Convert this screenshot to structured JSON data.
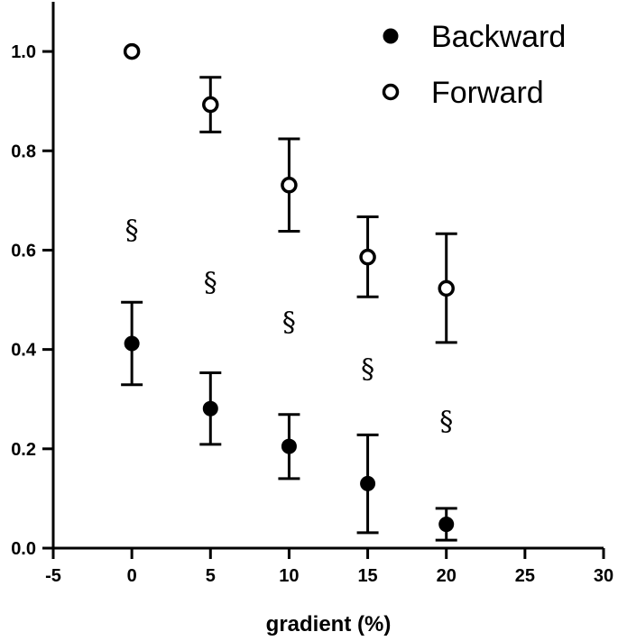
{
  "chart_data": {
    "type": "scatter",
    "title": "",
    "xlabel": "gradient (%)",
    "ylabel": "",
    "xlim": [
      -5,
      30
    ],
    "ylim": [
      0,
      1.1
    ],
    "x_ticks": [
      -5,
      0,
      5,
      10,
      15,
      20,
      25,
      30
    ],
    "x_tick_labels": [
      "-5",
      "0",
      "5",
      "10",
      "15",
      "20",
      "25",
      "30"
    ],
    "y_ticks": [
      0,
      0.2,
      0.4,
      0.6,
      0.8,
      1.0
    ],
    "y_tick_labels": [
      "0.0",
      "0.2",
      "0.4",
      "0.6",
      "0.8",
      "1.0"
    ],
    "grid": false,
    "legend_position": "top-right",
    "series": [
      {
        "name": "Backward",
        "marker": "filled-circle",
        "color": "#000000",
        "x": [
          0,
          5,
          10,
          15,
          20
        ],
        "y": [
          0.412,
          0.281,
          0.205,
          0.13,
          0.048
        ],
        "err_low": [
          0.329,
          0.209,
          0.14,
          0.031,
          0.016
        ],
        "err_high": [
          0.495,
          0.353,
          0.269,
          0.228,
          0.08
        ]
      },
      {
        "name": "Forward",
        "marker": "open-circle",
        "color": "#000000",
        "x": [
          0,
          5,
          10,
          15,
          20
        ],
        "y": [
          1.0,
          0.893,
          0.731,
          0.586,
          0.523
        ],
        "err_low": [
          1.0,
          0.838,
          0.638,
          0.506,
          0.414
        ],
        "err_high": [
          1.0,
          0.948,
          0.824,
          0.667,
          0.633
        ]
      }
    ],
    "annotations": [
      {
        "text": "§",
        "x": 0,
        "y": 0.64
      },
      {
        "text": "§",
        "x": 5,
        "y": 0.535
      },
      {
        "text": "§",
        "x": 10,
        "y": 0.455
      },
      {
        "text": "§",
        "x": 15,
        "y": 0.36
      },
      {
        "text": "§",
        "x": 20,
        "y": 0.255
      }
    ]
  }
}
